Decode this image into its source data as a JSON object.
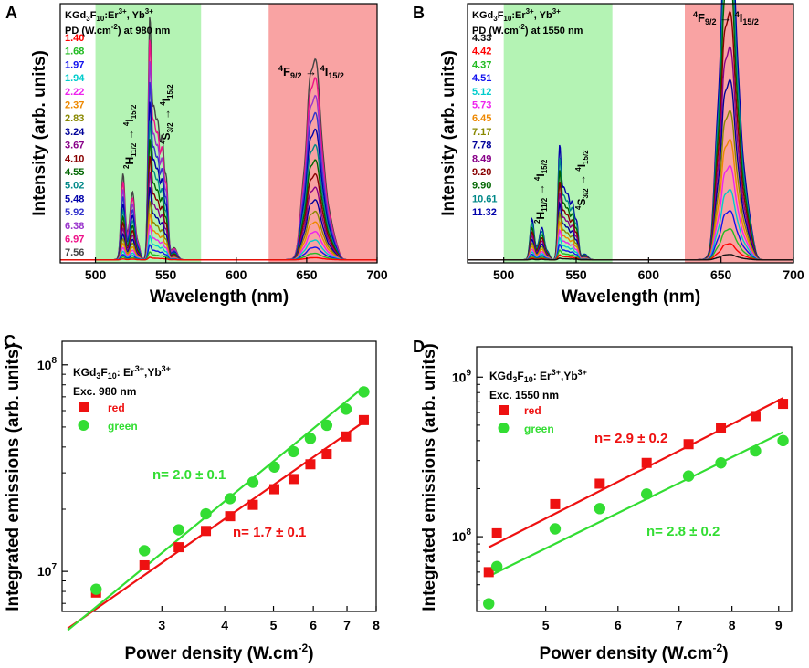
{
  "chart_data": [
    {
      "id": "A",
      "type": "line",
      "panel_label": "A",
      "compound": "KGd3F10:Er3+, Yb3+",
      "legend_title": "PD (W.cm-2) at 980 nm",
      "xlabel": "Wavelength (nm)",
      "ylabel": "Intensity (arb. units)",
      "xlim": [
        475,
        700
      ],
      "ylim": [
        0,
        1.05
      ],
      "xticks": [
        500,
        550,
        600,
        650,
        700
      ],
      "green_band": [
        500,
        575
      ],
      "red_band": [
        623,
        700
      ],
      "transitions": [
        {
          "text": "2H11/2 → 4I15/2",
          "near_nm": 522
        },
        {
          "text": "4S3/2 → 4I15/2",
          "near_nm": 549
        },
        {
          "text": "4F9/2 → 4I15/2",
          "near_nm": 655
        }
      ],
      "scale_max": {
        "green": 0.93,
        "red": 0.55
      },
      "series": [
        {
          "name": "1.40",
          "color": "#ff0000"
        },
        {
          "name": "1.68",
          "color": "#22bb22"
        },
        {
          "name": "1.97",
          "color": "#1111ee"
        },
        {
          "name": "1.94",
          "color": "#00cccc"
        },
        {
          "name": "2.22",
          "color": "#ee22ee"
        },
        {
          "name": "2.37",
          "color": "#ee8800"
        },
        {
          "name": "2.83",
          "color": "#888800"
        },
        {
          "name": "3.24",
          "color": "#000099"
        },
        {
          "name": "3.67",
          "color": "#880088"
        },
        {
          "name": "4.10",
          "color": "#880000"
        },
        {
          "name": "4.55",
          "color": "#006600"
        },
        {
          "name": "5.02",
          "color": "#008888"
        },
        {
          "name": "5.48",
          "color": "#0000aa"
        },
        {
          "name": "5.92",
          "color": "#3333cc"
        },
        {
          "name": "6.38",
          "color": "#9933cc"
        },
        {
          "name": "6.97",
          "color": "#ee1188"
        },
        {
          "name": "7.56",
          "color": "#444444"
        }
      ]
    },
    {
      "id": "B",
      "type": "line",
      "panel_label": "B",
      "compound": "KGd3F10:Er3+, Yb3+",
      "legend_title": "PD (W.cm-2) at 1550 nm",
      "xlabel": "Wavelength (nm)",
      "ylabel": "Intensity (arb. units)",
      "xlim": [
        475,
        700
      ],
      "ylim": [
        0,
        1.05
      ],
      "xticks": [
        500,
        550,
        600,
        650,
        700
      ],
      "green_band": [
        500,
        575
      ],
      "red_band": [
        625,
        700
      ],
      "transitions": [
        {
          "text": "2H11/2 → 4I15/2",
          "near_nm": 522
        },
        {
          "text": "4S3/2 → 4I15/2",
          "near_nm": 549
        },
        {
          "text": "4F9/2 → 4I15/2",
          "near_nm": 655
        }
      ],
      "scale_max": {
        "green": 0.44,
        "red": 1.0
      },
      "series": [
        {
          "name": "4.33",
          "color": "#111111"
        },
        {
          "name": "4.42",
          "color": "#ff0000"
        },
        {
          "name": "4.37",
          "color": "#22bb22"
        },
        {
          "name": "4.51",
          "color": "#1111ee"
        },
        {
          "name": "5.12",
          "color": "#00cccc"
        },
        {
          "name": "5.73",
          "color": "#ee22ee"
        },
        {
          "name": "6.45",
          "color": "#ee8800"
        },
        {
          "name": "7.17",
          "color": "#888800"
        },
        {
          "name": "7.78",
          "color": "#000099"
        },
        {
          "name": "8.49",
          "color": "#880088"
        },
        {
          "name": "9.20",
          "color": "#880000"
        },
        {
          "name": "9.90",
          "color": "#006600"
        },
        {
          "name": "10.61",
          "color": "#008888"
        },
        {
          "name": "11.32",
          "color": "#0000aa"
        }
      ]
    },
    {
      "id": "C",
      "type": "scatter",
      "panel_label": "C",
      "compound": "KGd3F10: Er3+,Yb3+",
      "excitation": "Exc. 980 nm",
      "xlabel": "Power density (W.cm-2)",
      "ylabel": "Integrated emissions (arb. units)",
      "xscale": "log",
      "yscale": "log",
      "xlim": [
        1.9,
        8.0
      ],
      "ylim": [
        6400000,
        130000000
      ],
      "xticks": [
        3,
        4,
        5,
        6,
        7,
        8
      ],
      "yticks": [
        {
          "value": 10000000,
          "label": "10^7"
        },
        {
          "value": 100000000,
          "label": "10^8"
        }
      ],
      "series": [
        {
          "name": "red",
          "color": "#ee1111",
          "marker": "square",
          "x": [
            2.22,
            2.77,
            3.24,
            3.67,
            4.1,
            4.55,
            5.02,
            5.48,
            5.92,
            6.38,
            6.97,
            7.56
          ],
          "y": [
            7900000,
            10700000,
            13100000,
            15700000,
            18500000,
            21000000,
            25000000,
            28000000,
            33000000,
            37000000,
            45000000,
            54000000
          ],
          "fit_slope": 1.7,
          "fit_range": [
            1.95,
            7.56
          ]
        },
        {
          "name": "green",
          "color": "#33dd33",
          "marker": "circle",
          "x": [
            2.22,
            2.77,
            3.24,
            3.67,
            4.1,
            4.55,
            5.02,
            5.48,
            5.92,
            6.38,
            6.97,
            7.56
          ],
          "y": [
            8200000,
            12600000,
            15900000,
            19000000,
            22500000,
            27000000,
            32000000,
            38000000,
            44000000,
            51000000,
            61000000,
            74000000
          ],
          "fit_slope": 2.0,
          "fit_range": [
            1.95,
            7.56
          ]
        }
      ],
      "annotations": {
        "green_fit": "n= 2.0 ± 0.1",
        "red_fit": "n= 1.7 ± 0.1"
      }
    },
    {
      "id": "D",
      "type": "scatter",
      "panel_label": "D",
      "compound": "KGd3F10: Er3+,Yb3+",
      "excitation": "Exc. 1550 nm",
      "xlabel": "Power density (W.cm-2)",
      "ylabel": "Integrated emissions (arb. units)",
      "xscale": "log",
      "yscale": "log",
      "xlim": [
        4.2,
        9.3
      ],
      "ylim": [
        34000000,
        1550000000
      ],
      "xticks": [
        5,
        6,
        7,
        8,
        9
      ],
      "yticks": [
        {
          "value": 100000000,
          "label": "10^8"
        },
        {
          "value": 1000000000,
          "label": "10^9"
        }
      ],
      "series": [
        {
          "name": "red",
          "color": "#ee1111",
          "marker": "square",
          "x": [
            4.33,
            4.42,
            5.12,
            5.73,
            6.45,
            7.17,
            7.78,
            8.49,
            9.1
          ],
          "y": [
            60000000,
            105000000,
            160000000,
            215000000,
            290000000,
            380000000,
            480000000,
            570000000,
            680000000
          ],
          "fit_slope": 2.9,
          "fit_range": [
            4.33,
            9.1
          ]
        },
        {
          "name": "green",
          "color": "#33dd33",
          "marker": "circle",
          "x": [
            4.33,
            4.42,
            5.12,
            5.73,
            6.45,
            7.17,
            7.78,
            8.49,
            9.1
          ],
          "y": [
            38000000,
            65000000,
            112000000,
            150000000,
            185000000,
            240000000,
            290000000,
            345000000,
            400000000
          ],
          "fit_slope": 2.8,
          "fit_range": [
            4.33,
            9.1
          ]
        }
      ],
      "annotations": {
        "red_fit": "n= 2.9 ± 0.2",
        "green_fit": "n= 2.8 ± 0.2"
      }
    }
  ]
}
